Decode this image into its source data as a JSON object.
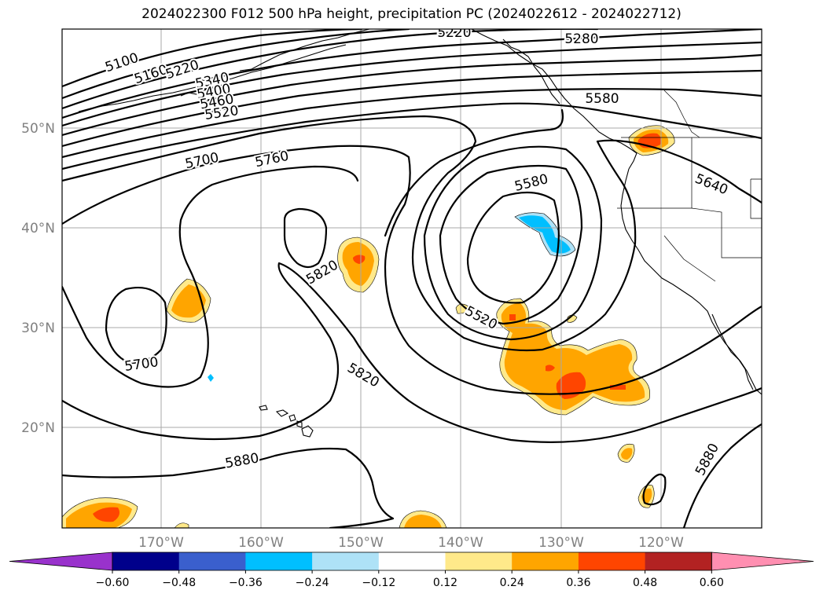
{
  "title": "2024022300 F012 500 hPa height, precipitation PC (2024022612 - 2024022712)",
  "map": {
    "lat_labels": [
      "50°N",
      "40°N",
      "30°N",
      "20°N"
    ],
    "lon_labels": [
      "170°W",
      "160°W",
      "150°W",
      "140°W",
      "130°W",
      "120°W"
    ],
    "contour_labels": [
      "5100",
      "5160",
      "5220",
      "5340",
      "5400",
      "5460",
      "5520",
      "5220",
      "5280",
      "5580",
      "5700",
      "5760",
      "5580",
      "5640",
      "5820",
      "5520",
      "5700",
      "5820",
      "5880",
      "5880"
    ]
  },
  "colorbar": {
    "tick_labels": [
      "−0.60",
      "−0.48",
      "−0.36",
      "−0.24",
      "−0.12",
      "0.12",
      "0.24",
      "0.36",
      "0.48",
      "0.60"
    ],
    "colors": [
      "#9932cc",
      "#00008b",
      "#3a5fcd",
      "#00bfff",
      "#aee2f7",
      "#ffffff",
      "#ffe98a",
      "#ffa500",
      "#ff4500",
      "#b22222",
      "#ff8fb1"
    ]
  },
  "precip_colors": {
    "light": "#ffe98a",
    "mid": "#ffa500",
    "high": "#ff4500",
    "neg": "#00bfff",
    "neg_light": "#aee2f7"
  }
}
